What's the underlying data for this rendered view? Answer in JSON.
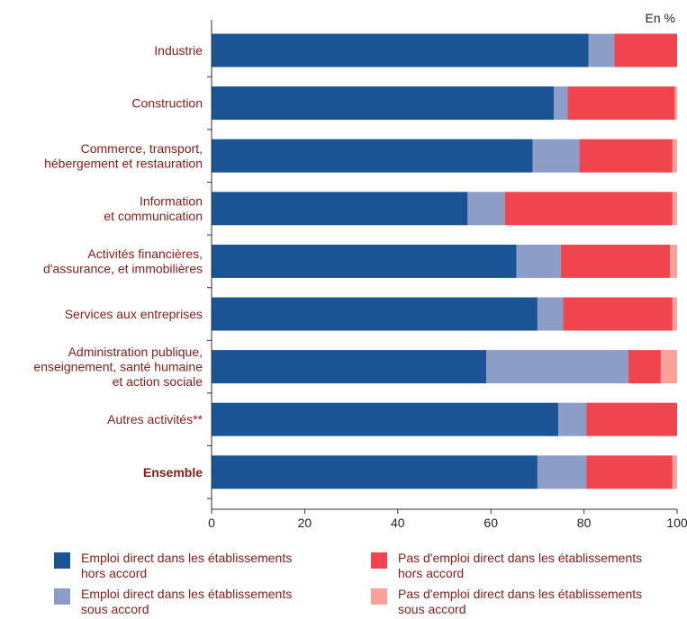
{
  "unit_label": "En %",
  "colors": {
    "emploi_hors_accord": "#1a5494",
    "emploi_sous_accord": "#8c9ec7",
    "pas_emploi_hors_accord": "#f0444f",
    "pas_emploi_sous_accord": "#f7a39a",
    "label_text": "#8b1a1a",
    "axis": "#333333"
  },
  "legend": [
    {
      "label": "Emploi direct  dans les établissements\nhors accord",
      "color": "#1a5494"
    },
    {
      "label": "Pas d'emploi direct  dans les établissements\nhors accord",
      "color": "#f0444f"
    },
    {
      "label": "Emploi direct dans les établissements\nsous accord",
      "color": "#8c9ec7"
    },
    {
      "label": "Pas d'emploi direct dans les établissements\nsous accord",
      "color": "#f7a39a"
    }
  ],
  "chart_data": {
    "type": "bar",
    "orientation": "horizontal",
    "stacked": true,
    "title": "",
    "xlabel": "",
    "ylabel": "",
    "unit": "En %",
    "xlim": [
      0,
      100
    ],
    "x_ticks": [
      "0",
      "20",
      "40",
      "60",
      "80",
      "100"
    ],
    "grid": false,
    "legend_position": "bottom",
    "categories": [
      [
        "Industrie"
      ],
      [
        "Construction"
      ],
      [
        "Commerce, transport,",
        "hébergement et restauration"
      ],
      [
        "Information",
        "et communication"
      ],
      [
        "Activités financières,",
        "d'assurance, et immobilières"
      ],
      [
        "Services aux entreprises"
      ],
      [
        "Administration publique,",
        "enseignement, santé humaine",
        "et action sociale"
      ],
      [
        "Autres activités**"
      ],
      [
        "Ensemble"
      ]
    ],
    "bold_categories": [
      8
    ],
    "series": [
      {
        "name": "Emploi direct  dans les établissements hors accord",
        "values": [
          81,
          73.5,
          69,
          55,
          65.5,
          70,
          59,
          74.5,
          70
        ]
      },
      {
        "name": "Emploi direct dans les établissements sous accord",
        "values": [
          5.5,
          3,
          10,
          8,
          9.5,
          5.5,
          30.5,
          6,
          10.5
        ]
      },
      {
        "name": "Pas d'emploi direct  dans les établissements hors accord",
        "values": [
          13.5,
          23,
          20,
          36,
          23.5,
          23.5,
          7,
          19.5,
          18.5
        ]
      },
      {
        "name": "Pas d'emploi direct dans les établissements sous accord",
        "values": [
          0,
          0.5,
          1,
          1,
          1.5,
          1,
          3.5,
          0,
          1
        ]
      }
    ]
  }
}
